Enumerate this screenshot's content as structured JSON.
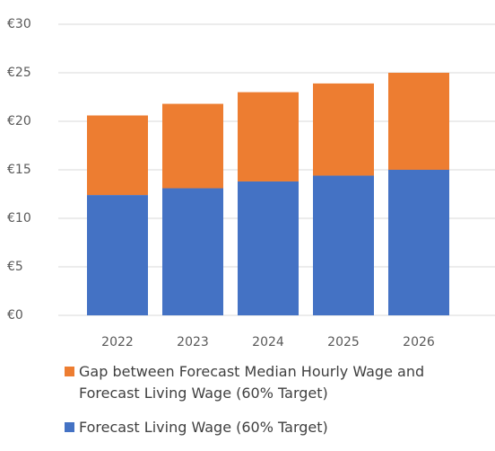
{
  "chart_data": {
    "type": "stacked-bar",
    "categories": [
      "2022",
      "2023",
      "2024",
      "2025",
      "2026"
    ],
    "series": [
      {
        "name": "Forecast Living Wage (60% Target)",
        "color": "#4472c4",
        "values": [
          12.4,
          13.1,
          13.8,
          14.4,
          15.0
        ]
      },
      {
        "name": "Gap between Forecast Median Hourly Wage and Forecast Living Wage (60% Target)",
        "color": "#ed7d31",
        "values": [
          8.2,
          8.7,
          9.2,
          9.5,
          10.0
        ]
      }
    ],
    "ylim": [
      0,
      30
    ],
    "yticks": [
      {
        "value": 0,
        "label": "€0"
      },
      {
        "value": 5,
        "label": "€5"
      },
      {
        "value": 10,
        "label": "€10"
      },
      {
        "value": 15,
        "label": "€15"
      },
      {
        "value": 20,
        "label": "€20"
      },
      {
        "value": 25,
        "label": "€25"
      },
      {
        "value": 30,
        "label": "€30"
      }
    ],
    "grid": true
  }
}
